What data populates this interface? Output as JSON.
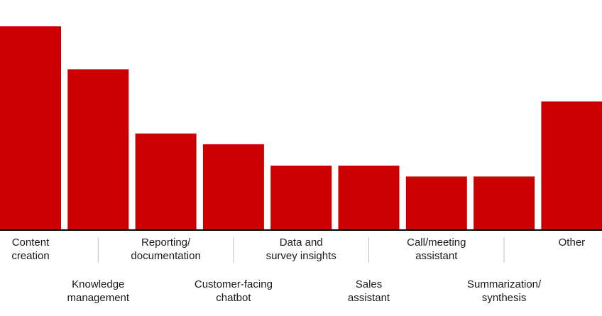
{
  "chart_data": {
    "type": "bar",
    "categories": [
      [
        "Content",
        "creation"
      ],
      [
        "Knowledge",
        "management"
      ],
      [
        "Reporting/",
        "documentation"
      ],
      [
        "Customer-facing",
        "chatbot"
      ],
      [
        "Data and",
        "survey insights"
      ],
      [
        "Sales",
        "assistant"
      ],
      [
        "Call/meeting",
        "assistant"
      ],
      [
        "Summarization/",
        "synthesis"
      ],
      [
        "Other"
      ]
    ],
    "values": [
      19,
      15,
      9,
      8,
      6,
      6,
      5,
      5,
      12
    ],
    "ylim": [
      0,
      20
    ],
    "colors": {
      "bar": "#cc0000",
      "axis": "#000000",
      "leader": "#bfbfbf"
    }
  }
}
